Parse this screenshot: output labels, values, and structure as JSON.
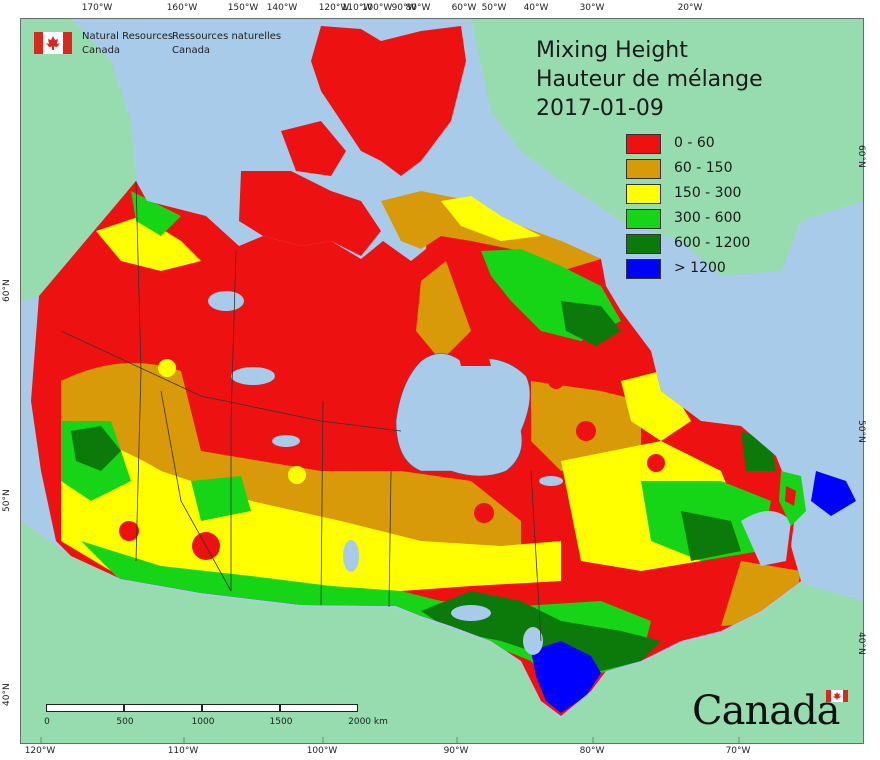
{
  "agency": {
    "name_en_line1": "Natural Resources",
    "name_en_line2": "Canada",
    "name_fr_line1": "Ressources naturelles",
    "name_fr_line2": "Canada"
  },
  "title": {
    "line1": "Mixing Height",
    "line2": "Hauteur de mélange",
    "date": "2017-01-09"
  },
  "legend": [
    {
      "label": "0 - 60",
      "color": "#ee1111"
    },
    {
      "label": "60 - 150",
      "color": "#d89a08"
    },
    {
      "label": "150 - 300",
      "color": "#ffff00"
    },
    {
      "label": "300 - 600",
      "color": "#16d416"
    },
    {
      "label": "600 - 1200",
      "color": "#0b7a0b"
    },
    {
      "label": "> 1200",
      "color": "#0000ff"
    }
  ],
  "colors": {
    "ocean": "#a9cbea",
    "land_outside": "#96dcaf",
    "boundary": "#333333"
  },
  "top_ticks": [
    "170°W",
    "160°W",
    "150°W",
    "140°W",
    "120°W",
    "110°W",
    "100°W",
    "90°W",
    "80°W",
    "60°W",
    "50°W",
    "40°W",
    "30°W",
    "20°W"
  ],
  "bottom_ticks": [
    "120°W",
    "110°W",
    "100°W",
    "90°W",
    "80°W",
    "70°W"
  ],
  "left_ticks": [
    "60°N",
    "50°N",
    "40°N"
  ],
  "right_ticks": [
    "60°N",
    "50°N",
    "40°N"
  ],
  "scale_bar": {
    "labels": [
      "0",
      "500",
      "1000",
      "1500",
      "2000  km"
    ]
  },
  "wordmark": "Canada"
}
